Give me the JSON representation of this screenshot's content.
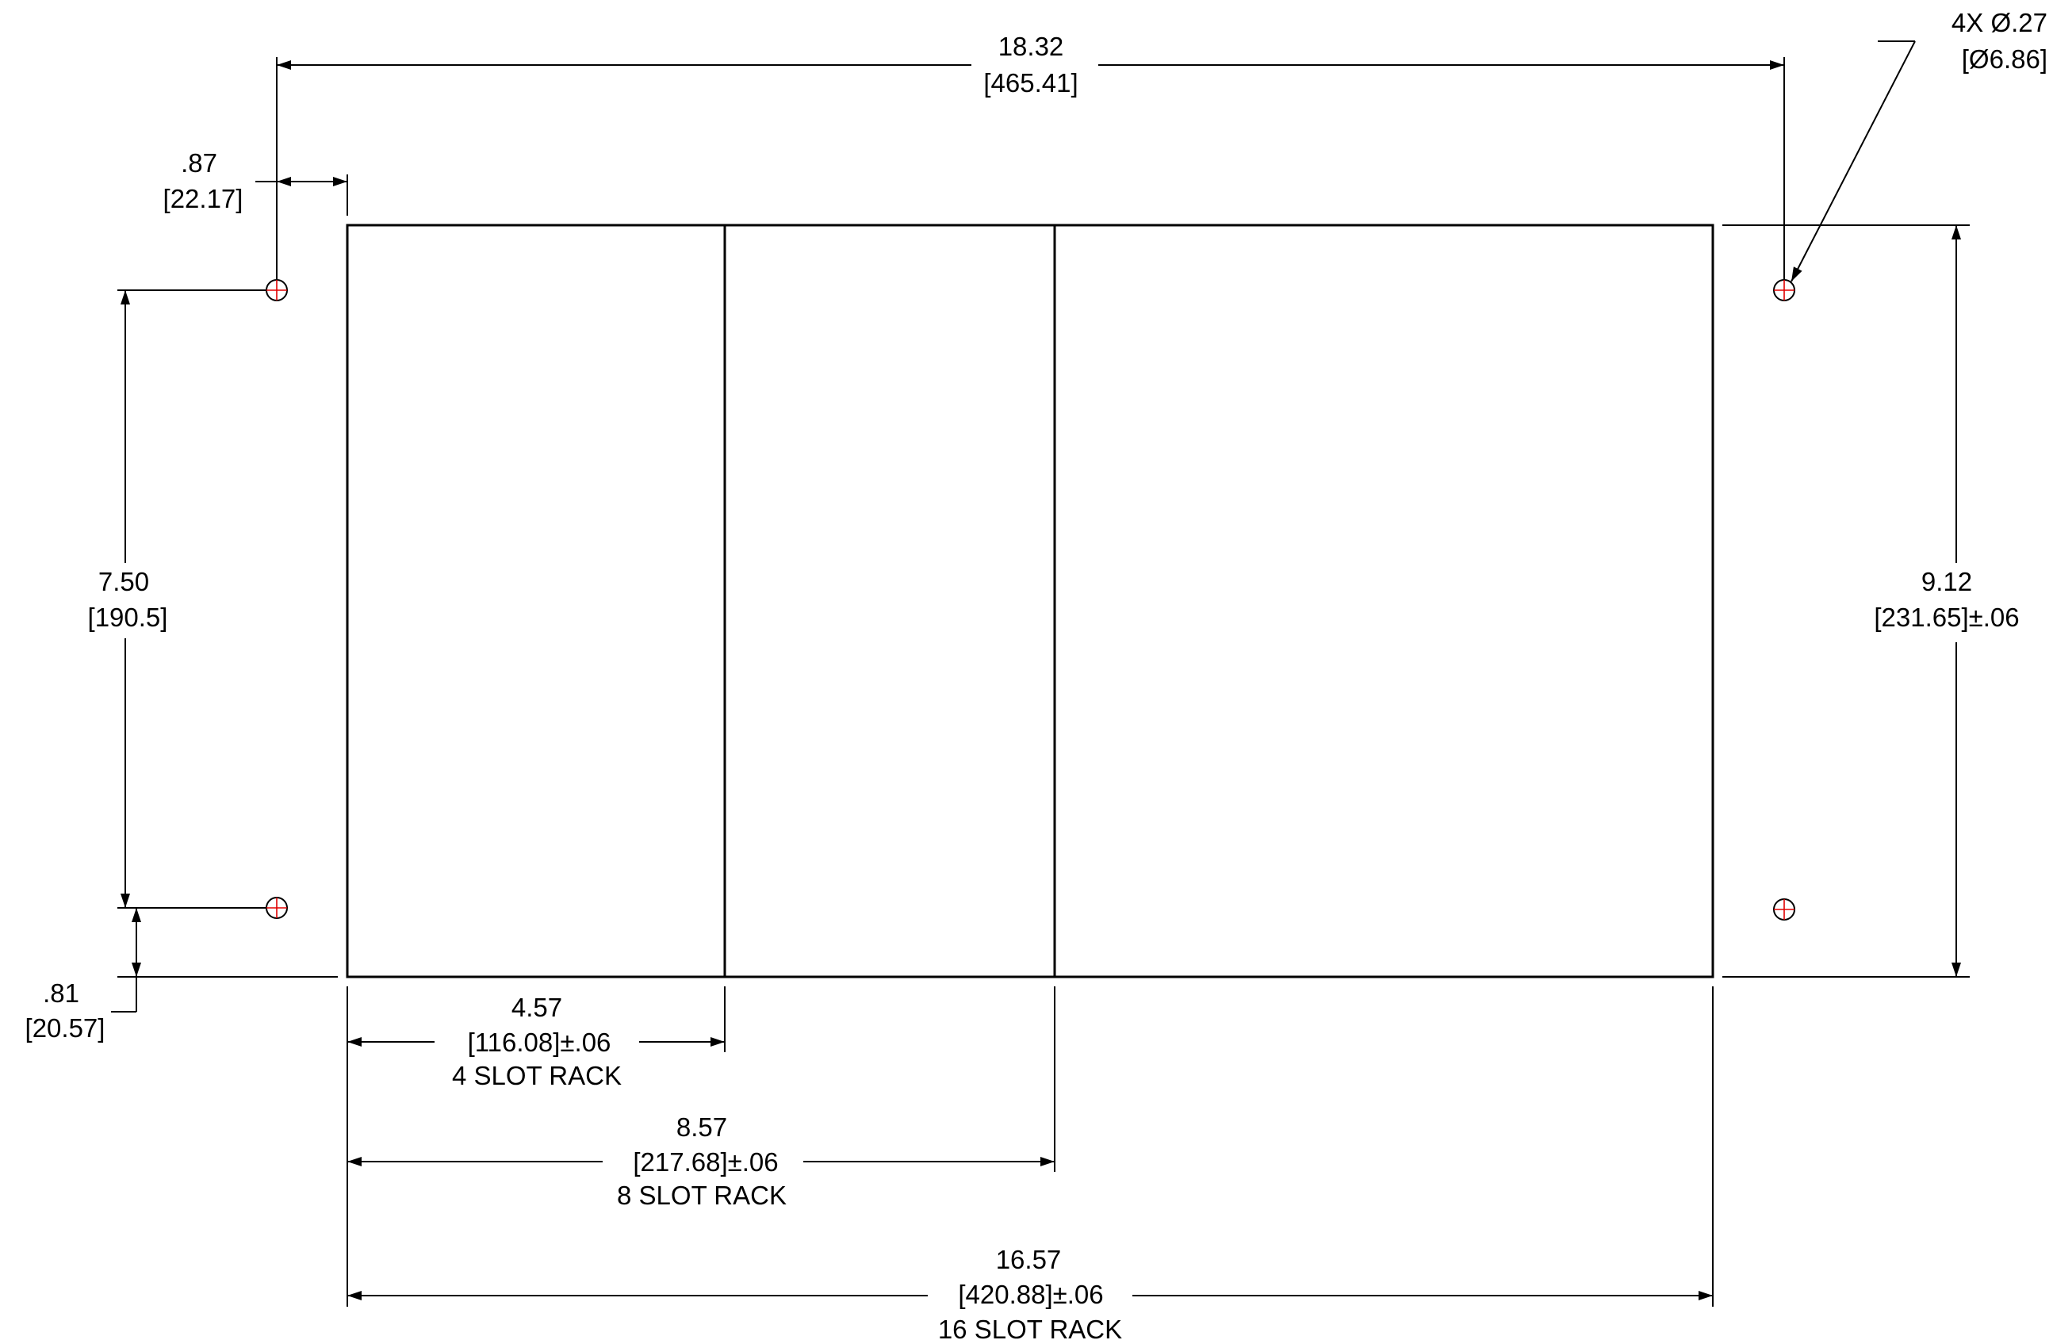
{
  "drawing": {
    "colors": {
      "line": "#000000",
      "hole_center": "#e00000",
      "background": "#ffffff"
    },
    "dimensions": {
      "overall_hole_spacing": {
        "value": "18.32",
        "metric": "[465.41]"
      },
      "hole_diameter": {
        "value": "4X Ø.27",
        "metric": "[Ø6.86]"
      },
      "hole_edge_offset": {
        "value": ".87",
        "metric": "[22.17]"
      },
      "vertical_hole_spacing": {
        "value": "7.50",
        "metric": "[190.5]"
      },
      "bottom_hole_offset": {
        "value": ".81",
        "metric": "[20.57]"
      },
      "panel_height": {
        "value": "9.12",
        "metric": "[231.65]±.06"
      },
      "rack_4_slot": {
        "value": "4.57",
        "metric": "[116.08]±.06",
        "label": "4 SLOT RACK"
      },
      "rack_8_slot": {
        "value": "8.57",
        "metric": "[217.68]±.06",
        "label": "8 SLOT RACK"
      },
      "rack_16_slot": {
        "value": "16.57",
        "metric": "[420.88]±.06",
        "label": "16 SLOT RACK"
      }
    }
  }
}
